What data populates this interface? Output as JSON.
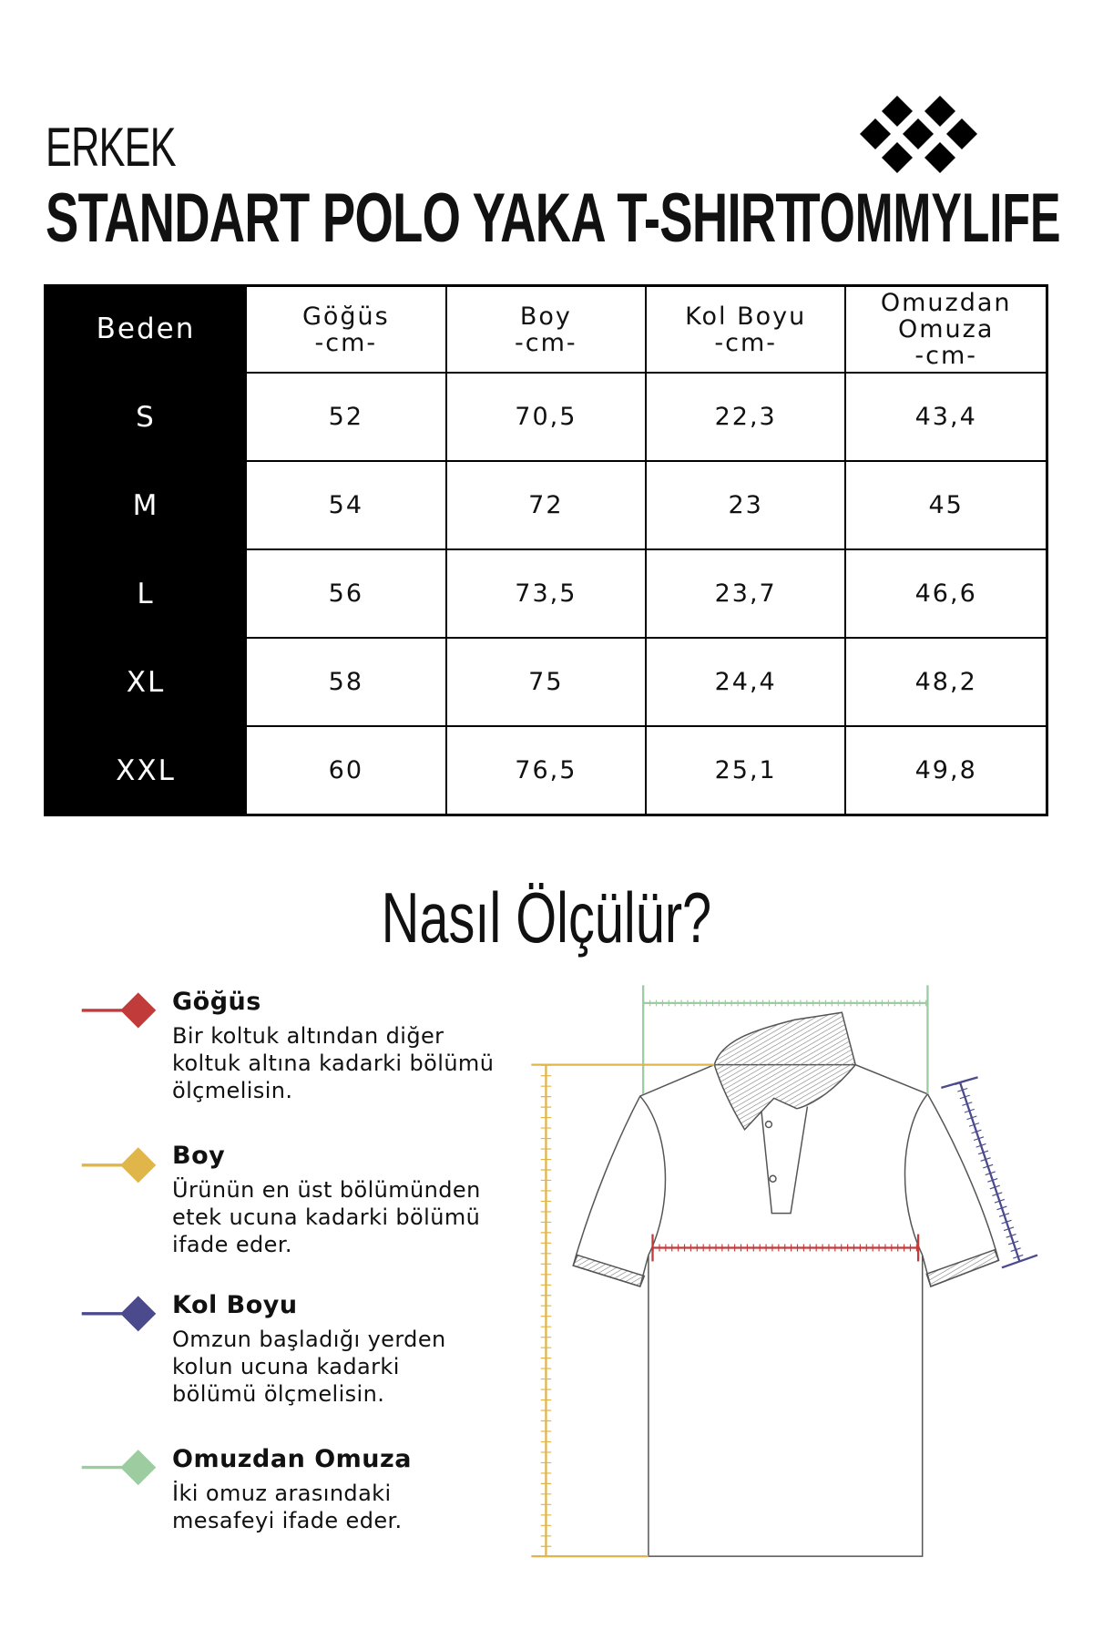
{
  "header": {
    "category": "ERKEK",
    "product_title": "STANDART POLO YAKA T-SHIRT",
    "brand": "TOMMYLIFE",
    "brand_logo_icon": "seven-diamonds-logo"
  },
  "size_table": {
    "headers": [
      {
        "label": "Beden",
        "unit": ""
      },
      {
        "label": "Göğüs",
        "unit": "-cm-"
      },
      {
        "label": "Boy",
        "unit": "-cm-"
      },
      {
        "label": "Kol Boyu",
        "unit": "-cm-"
      },
      {
        "label": "Omuzdan Omuza",
        "label_line1": "Omuzdan",
        "label_line2": "Omuza",
        "unit": "-cm-"
      }
    ],
    "rows": [
      [
        "S",
        "52",
        "70,5",
        "22,3",
        "43,4"
      ],
      [
        "M",
        "54",
        "72",
        "23",
        "45"
      ],
      [
        "L",
        "56",
        "73,5",
        "23,7",
        "46,6"
      ],
      [
        "XL",
        "58",
        "75",
        "24,4",
        "48,2"
      ],
      [
        "XXL",
        "60",
        "76,5",
        "25,1",
        "49,8"
      ]
    ]
  },
  "how_to_measure": {
    "title": "Nasıl Ölçülür?",
    "items": [
      {
        "title": "Göğüs",
        "lines": [
          "Bir koltuk altından diğer",
          "koltuk altına kadarki bölümü",
          "ölçmelisin."
        ],
        "color": "#c23b3b"
      },
      {
        "title": "Boy",
        "lines": [
          "Ürünün en üst bölümünden",
          "etek ucuna kadarki bölümü",
          "ifade eder."
        ],
        "color": "#e0b54a"
      },
      {
        "title": "Kol Boyu",
        "lines": [
          "Omzun başladığı yerden",
          "kolun ucuna kadarki",
          "bölümü ölçmelisin."
        ],
        "color": "#4b4a8c"
      },
      {
        "title": "Omuzdan Omuza",
        "lines": [
          "İki omuz arasındaki",
          "mesafeyi ifade eder."
        ],
        "color": "#9ccc9f"
      }
    ]
  }
}
